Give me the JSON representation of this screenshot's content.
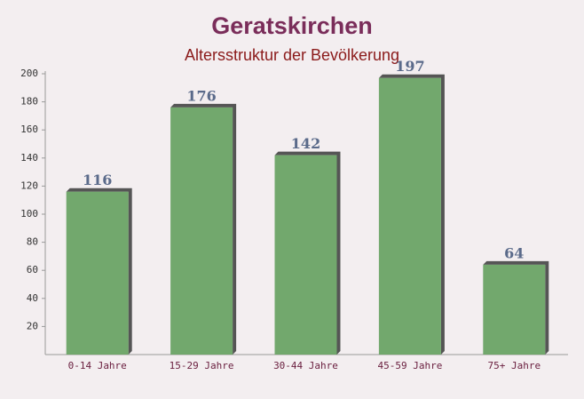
{
  "chart_data": {
    "type": "bar",
    "title": "Geratskirchen",
    "subtitle": "Altersstruktur der Bevölkerung",
    "categories": [
      "0-14 Jahre",
      "15-29 Jahre",
      "30-44 Jahre",
      "45-59 Jahre",
      "75+ Jahre"
    ],
    "values": [
      116,
      176,
      142,
      197,
      64
    ],
    "color": "#6aa365",
    "ylim": [
      0,
      200
    ],
    "yticks": [
      20,
      40,
      60,
      80,
      100,
      120,
      140,
      160,
      180,
      200
    ],
    "grid": false
  }
}
